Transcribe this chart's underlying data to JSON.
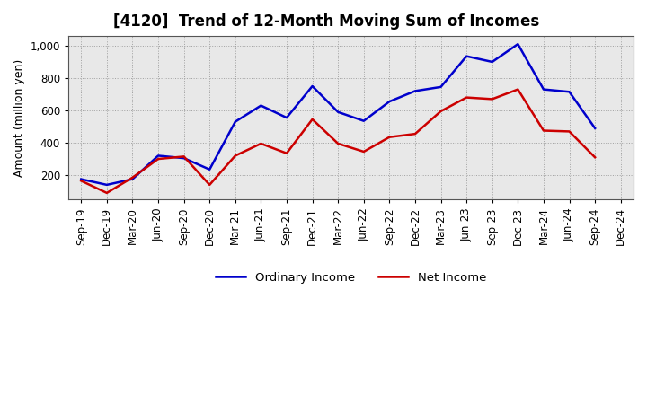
{
  "title": "[4120]  Trend of 12-Month Moving Sum of Incomes",
  "ylabel": "Amount (million yen)",
  "background_color": "#ffffff",
  "plot_bg_color": "#e8e8e8",
  "grid_color": "#999999",
  "x_labels": [
    "Sep-19",
    "Dec-19",
    "Mar-20",
    "Jun-20",
    "Sep-20",
    "Dec-20",
    "Mar-21",
    "Jun-21",
    "Sep-21",
    "Dec-21",
    "Mar-22",
    "Jun-22",
    "Sep-22",
    "Dec-22",
    "Mar-23",
    "Jun-23",
    "Sep-23",
    "Dec-23",
    "Mar-24",
    "Jun-24",
    "Sep-24",
    "Dec-24"
  ],
  "ordinary_income": [
    175,
    140,
    175,
    320,
    305,
    235,
    530,
    630,
    555,
    750,
    590,
    535,
    655,
    720,
    745,
    935,
    900,
    1010,
    730,
    715,
    490,
    null
  ],
  "net_income": [
    165,
    90,
    185,
    300,
    315,
    140,
    320,
    395,
    335,
    545,
    395,
    345,
    435,
    455,
    595,
    680,
    670,
    730,
    475,
    470,
    310,
    null
  ],
  "ordinary_color": "#0000cc",
  "net_color": "#cc0000",
  "ylim": [
    50,
    1060
  ],
  "yticks": [
    200,
    400,
    600,
    800,
    1000
  ],
  "line_width": 1.8,
  "title_fontsize": 12,
  "axis_fontsize": 9,
  "tick_fontsize": 8.5,
  "legend_fontsize": 9.5
}
